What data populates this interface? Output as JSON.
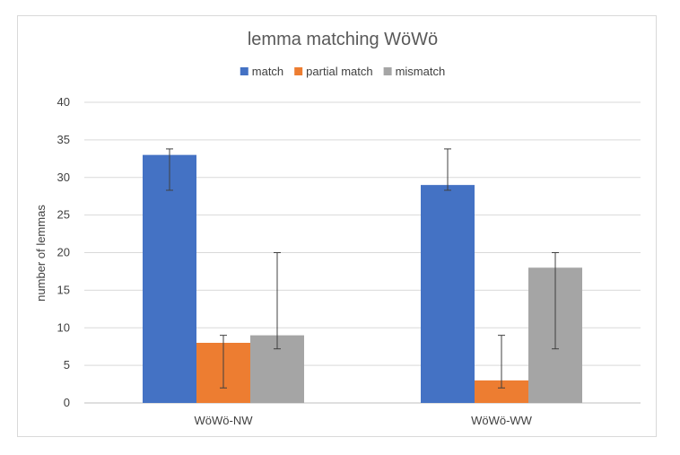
{
  "chart_data": {
    "type": "bar",
    "title": "lemma matching WöWö",
    "xlabel": "",
    "ylabel": "number of lemmas",
    "ylim": [
      0,
      40
    ],
    "yticks": [
      0,
      5,
      10,
      15,
      20,
      25,
      30,
      35,
      40
    ],
    "grid": true,
    "legend_position": "top",
    "categories": [
      "WöWö-NW",
      "WöWö-WW"
    ],
    "series": [
      {
        "name": "match",
        "color": "#4472C4",
        "values": [
          33,
          29
        ],
        "error_low": [
          28.3,
          28.3
        ],
        "error_high": [
          33.8,
          33.8
        ]
      },
      {
        "name": "partial match",
        "color": "#ED7D31",
        "values": [
          8,
          3
        ],
        "error_low": [
          2,
          2
        ],
        "error_high": [
          9,
          9
        ]
      },
      {
        "name": "mismatch",
        "color": "#A5A5A5",
        "values": [
          9,
          18
        ],
        "error_low": [
          7.2,
          7.2
        ],
        "error_high": [
          20,
          20
        ]
      }
    ]
  }
}
